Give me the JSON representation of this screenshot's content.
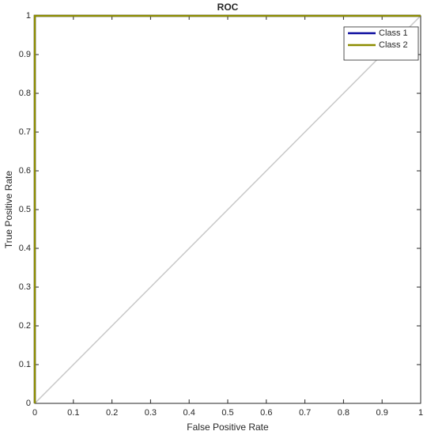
{
  "chart_data": {
    "type": "line",
    "title": "ROC",
    "x_label": "False Positive Rate",
    "y_label": "True Positive Rate",
    "x": [
      0,
      0,
      1
    ],
    "series": [
      {
        "name": "Class 1",
        "color": "#0a0a9e",
        "values": [
          0,
          1,
          1
        ]
      },
      {
        "name": "Class 2",
        "color": "#8c8c00",
        "values": [
          0,
          1,
          1
        ]
      }
    ],
    "xlim": [
      0,
      1
    ],
    "ylim": [
      0,
      1
    ],
    "xticks": [
      0,
      0.1,
      0.2,
      0.3,
      0.4,
      0.5,
      0.6,
      0.7,
      0.8,
      0.9,
      1
    ],
    "yticks": [
      0,
      0.1,
      0.2,
      0.3,
      0.4,
      0.5,
      0.6,
      0.7,
      0.8,
      0.9,
      1
    ],
    "legend": "upper right",
    "grid": false
  }
}
